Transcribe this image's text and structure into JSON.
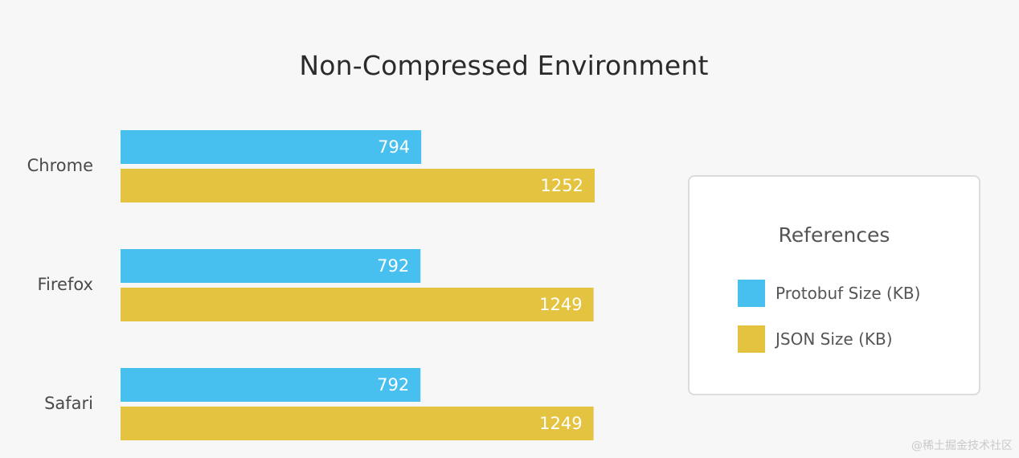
{
  "chart_data": {
    "type": "bar",
    "orientation": "horizontal",
    "title": "Non-Compressed Environment",
    "categories": [
      "Chrome",
      "Firefox",
      "Safari"
    ],
    "series": [
      {
        "name": "Protobuf Size (KB)",
        "values": [
          794,
          792,
          792
        ],
        "color": "#48c0ef"
      },
      {
        "name": "JSON Size (KB)",
        "values": [
          1252,
          1249,
          1249
        ],
        "color": "#e3c33f"
      }
    ],
    "xlim": [
      0,
      1252
    ],
    "data_labels": true,
    "grid": false,
    "legend_placement": "right",
    "legend_title": "References"
  },
  "watermark": "@稀土掘金技术社区"
}
